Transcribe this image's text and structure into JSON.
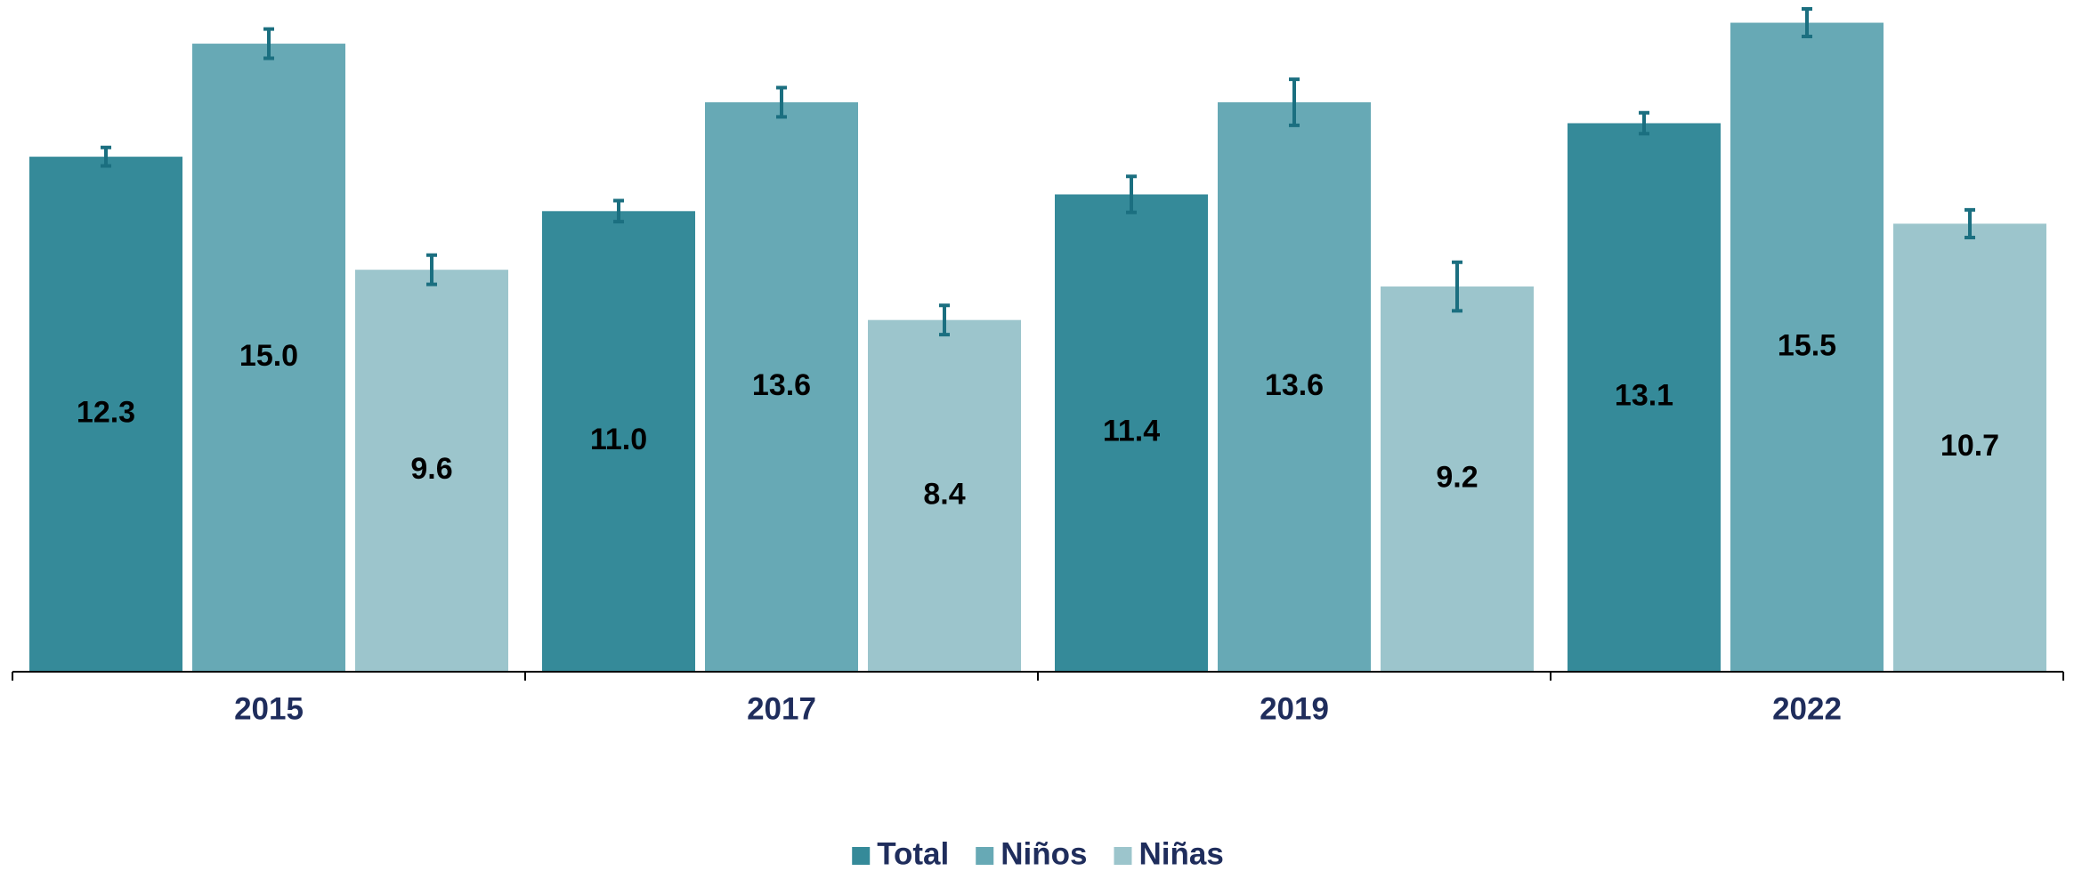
{
  "chart_data": {
    "type": "bar",
    "categories": [
      "2015",
      "2017",
      "2019",
      "2022"
    ],
    "series": [
      {
        "name": "Total",
        "color": "#358a99",
        "values": [
          12.3,
          11.0,
          11.4,
          13.1
        ],
        "value_labels": [
          "12.3",
          "11.0",
          "11.4",
          "13.1"
        ],
        "errors": [
          0.22,
          0.25,
          0.43,
          0.25
        ]
      },
      {
        "name": "Niños",
        "color": "#67a9b5",
        "values": [
          15.0,
          13.6,
          13.6,
          15.5
        ],
        "value_labels": [
          "15.0",
          "13.6",
          "13.6",
          "15.5"
        ],
        "errors": [
          0.35,
          0.35,
          0.55,
          0.33
        ]
      },
      {
        "name": "Niñas",
        "color": "#9cc5cc",
        "values": [
          9.6,
          8.4,
          9.2,
          10.7
        ],
        "value_labels": [
          "9.6",
          "8.4",
          "9.2",
          "10.7"
        ],
        "errors": [
          0.35,
          0.35,
          0.58,
          0.33
        ]
      }
    ],
    "error_color": "#1b6f80",
    "ylim": [
      0,
      16
    ],
    "legend": "bottom"
  }
}
